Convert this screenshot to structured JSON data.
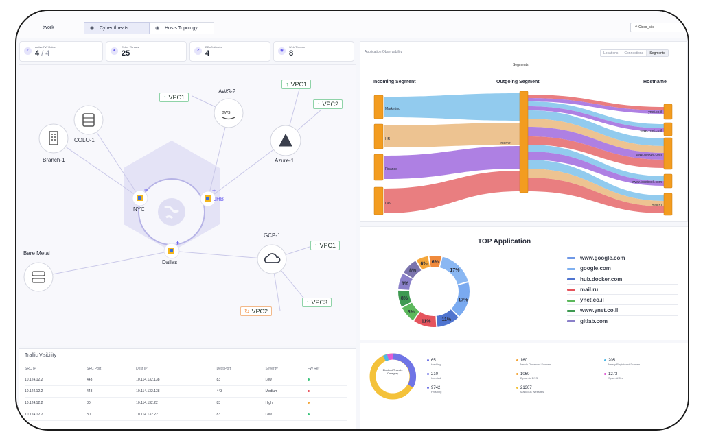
{
  "tabs": [
    {
      "label": "twork"
    },
    {
      "label": "Cyber threats"
    },
    {
      "label": "Hosts Topology"
    }
  ],
  "search": {
    "value": "Cisco_site"
  },
  "stats": [
    {
      "label": "Active FW Rules",
      "value": "4",
      "total": "/ 4"
    },
    {
      "label": "Cyber Threats",
      "value": "25"
    },
    {
      "label": "DDoS Attacks",
      "value": "4"
    },
    {
      "label": "Web Threats",
      "value": "8"
    }
  ],
  "topology": {
    "nodes": {
      "colo": "COLO-1",
      "branch": "Branch-1",
      "aws": "AWS-2",
      "azure": "Azure-1",
      "nyc": "NYC",
      "jhb": "JHB",
      "dallas": "Dallas",
      "gcp": "GCP-1",
      "bare": "Bare Metal"
    },
    "aws_logo_text": "aws",
    "vpcs": {
      "aws_vpc1": "VPC1",
      "azure_vpc1": "VPC1",
      "azure_vpc2": "VPC2",
      "gcp_vpc1": "VPC1",
      "gcp_vpc2": "VPC2",
      "gcp_vpc3": "VPC3"
    }
  },
  "traffic": {
    "title": "Traffic Visibility",
    "columns": [
      "SRC IP",
      "SRC Port",
      "Dest IP",
      "Dest Port",
      "Severity",
      "FW Ref"
    ],
    "rows": [
      {
        "src_ip": "10.124.12.2",
        "src_port": "443",
        "dest_ip": "10.114.132.138",
        "dest_port": "83",
        "severity": "Low",
        "color": "#3cc47c"
      },
      {
        "src_ip": "10.124.12.2",
        "src_port": "443",
        "dest_ip": "10.114.132.138",
        "dest_port": "443",
        "severity": "Medium",
        "color": "#e8505b"
      },
      {
        "src_ip": "10.124.12.2",
        "src_port": "80",
        "dest_ip": "10.114.132.22",
        "dest_port": "83",
        "severity": "High",
        "color": "#f4a63a"
      },
      {
        "src_ip": "10.124.12.2",
        "src_port": "80",
        "dest_ip": "10.114.132.22",
        "dest_port": "83",
        "severity": "Low",
        "color": "#3cc47c"
      }
    ]
  },
  "observability": {
    "title": "Application Observability",
    "tabs": [
      "Locations",
      "Connections",
      "Segments"
    ],
    "subtitle": "Segments",
    "col_incoming": "Incoming Segment",
    "col_outgoing": "Outgoing Segment",
    "col_hostname": "Hostname",
    "incoming": [
      "Marketing",
      "HR",
      "Finance",
      "Dev"
    ],
    "outgoing": [
      "Internet"
    ],
    "hostnames": [
      "ynet.co.il",
      "www.ynet.co.il",
      "www.google.com",
      "www.facebook.com",
      "mail.ru"
    ]
  },
  "top_application": {
    "title": "TOP Application",
    "legend": [
      {
        "label": "www.google.com",
        "color": "#6f98e6"
      },
      {
        "label": "google.com",
        "color": "#7fb0f0"
      },
      {
        "label": "hub.docker.com",
        "color": "#4f74cf"
      },
      {
        "label": "mail.ru",
        "color": "#e5545d"
      },
      {
        "label": "ynet.co.il",
        "color": "#5cb85c"
      },
      {
        "label": "www.ynet.co.il",
        "color": "#3f9a52"
      },
      {
        "label": "gitlab.com",
        "color": "#8a80c9"
      }
    ]
  },
  "chart_data": {
    "type": "pie",
    "title": "TOP Application",
    "labels": [
      "17%",
      "17%",
      "11%",
      "11%",
      "8%",
      "8%",
      "8%",
      "8%",
      "6%",
      "6%"
    ],
    "values": [
      17,
      17,
      11,
      11,
      8,
      8,
      8,
      8,
      6,
      6
    ],
    "colors": [
      "#8ab7f2",
      "#7aaaf0",
      "#4f74cf",
      "#e5545d",
      "#5cb85c",
      "#3f9a52",
      "#8a80c9",
      "#7b74ad",
      "#f4a63a",
      "#f08a3c"
    ]
  },
  "threats": {
    "donut_label": "Blocked Threats Category",
    "items": [
      {
        "value": "65",
        "label": "Hacking",
        "color": "#6f74e6"
      },
      {
        "value": "160",
        "label": "Newly Observed Domain",
        "color": "#f4a63a"
      },
      {
        "value": "205",
        "label": "Newly Registered Domain",
        "color": "#4fb8e6"
      },
      {
        "value": "210",
        "label": "Unrated",
        "color": "#6f74e6"
      },
      {
        "value": "1060",
        "label": "Dynamic DNS",
        "color": "#f4a63a"
      },
      {
        "value": "1273",
        "label": "Spam URLs",
        "color": "#e05bd5"
      },
      {
        "value": "9742",
        "label": "Phishing",
        "color": "#6f74e6"
      },
      {
        "value": "21307",
        "label": "Malicious Websites",
        "color": "#f4c23a"
      }
    ]
  }
}
